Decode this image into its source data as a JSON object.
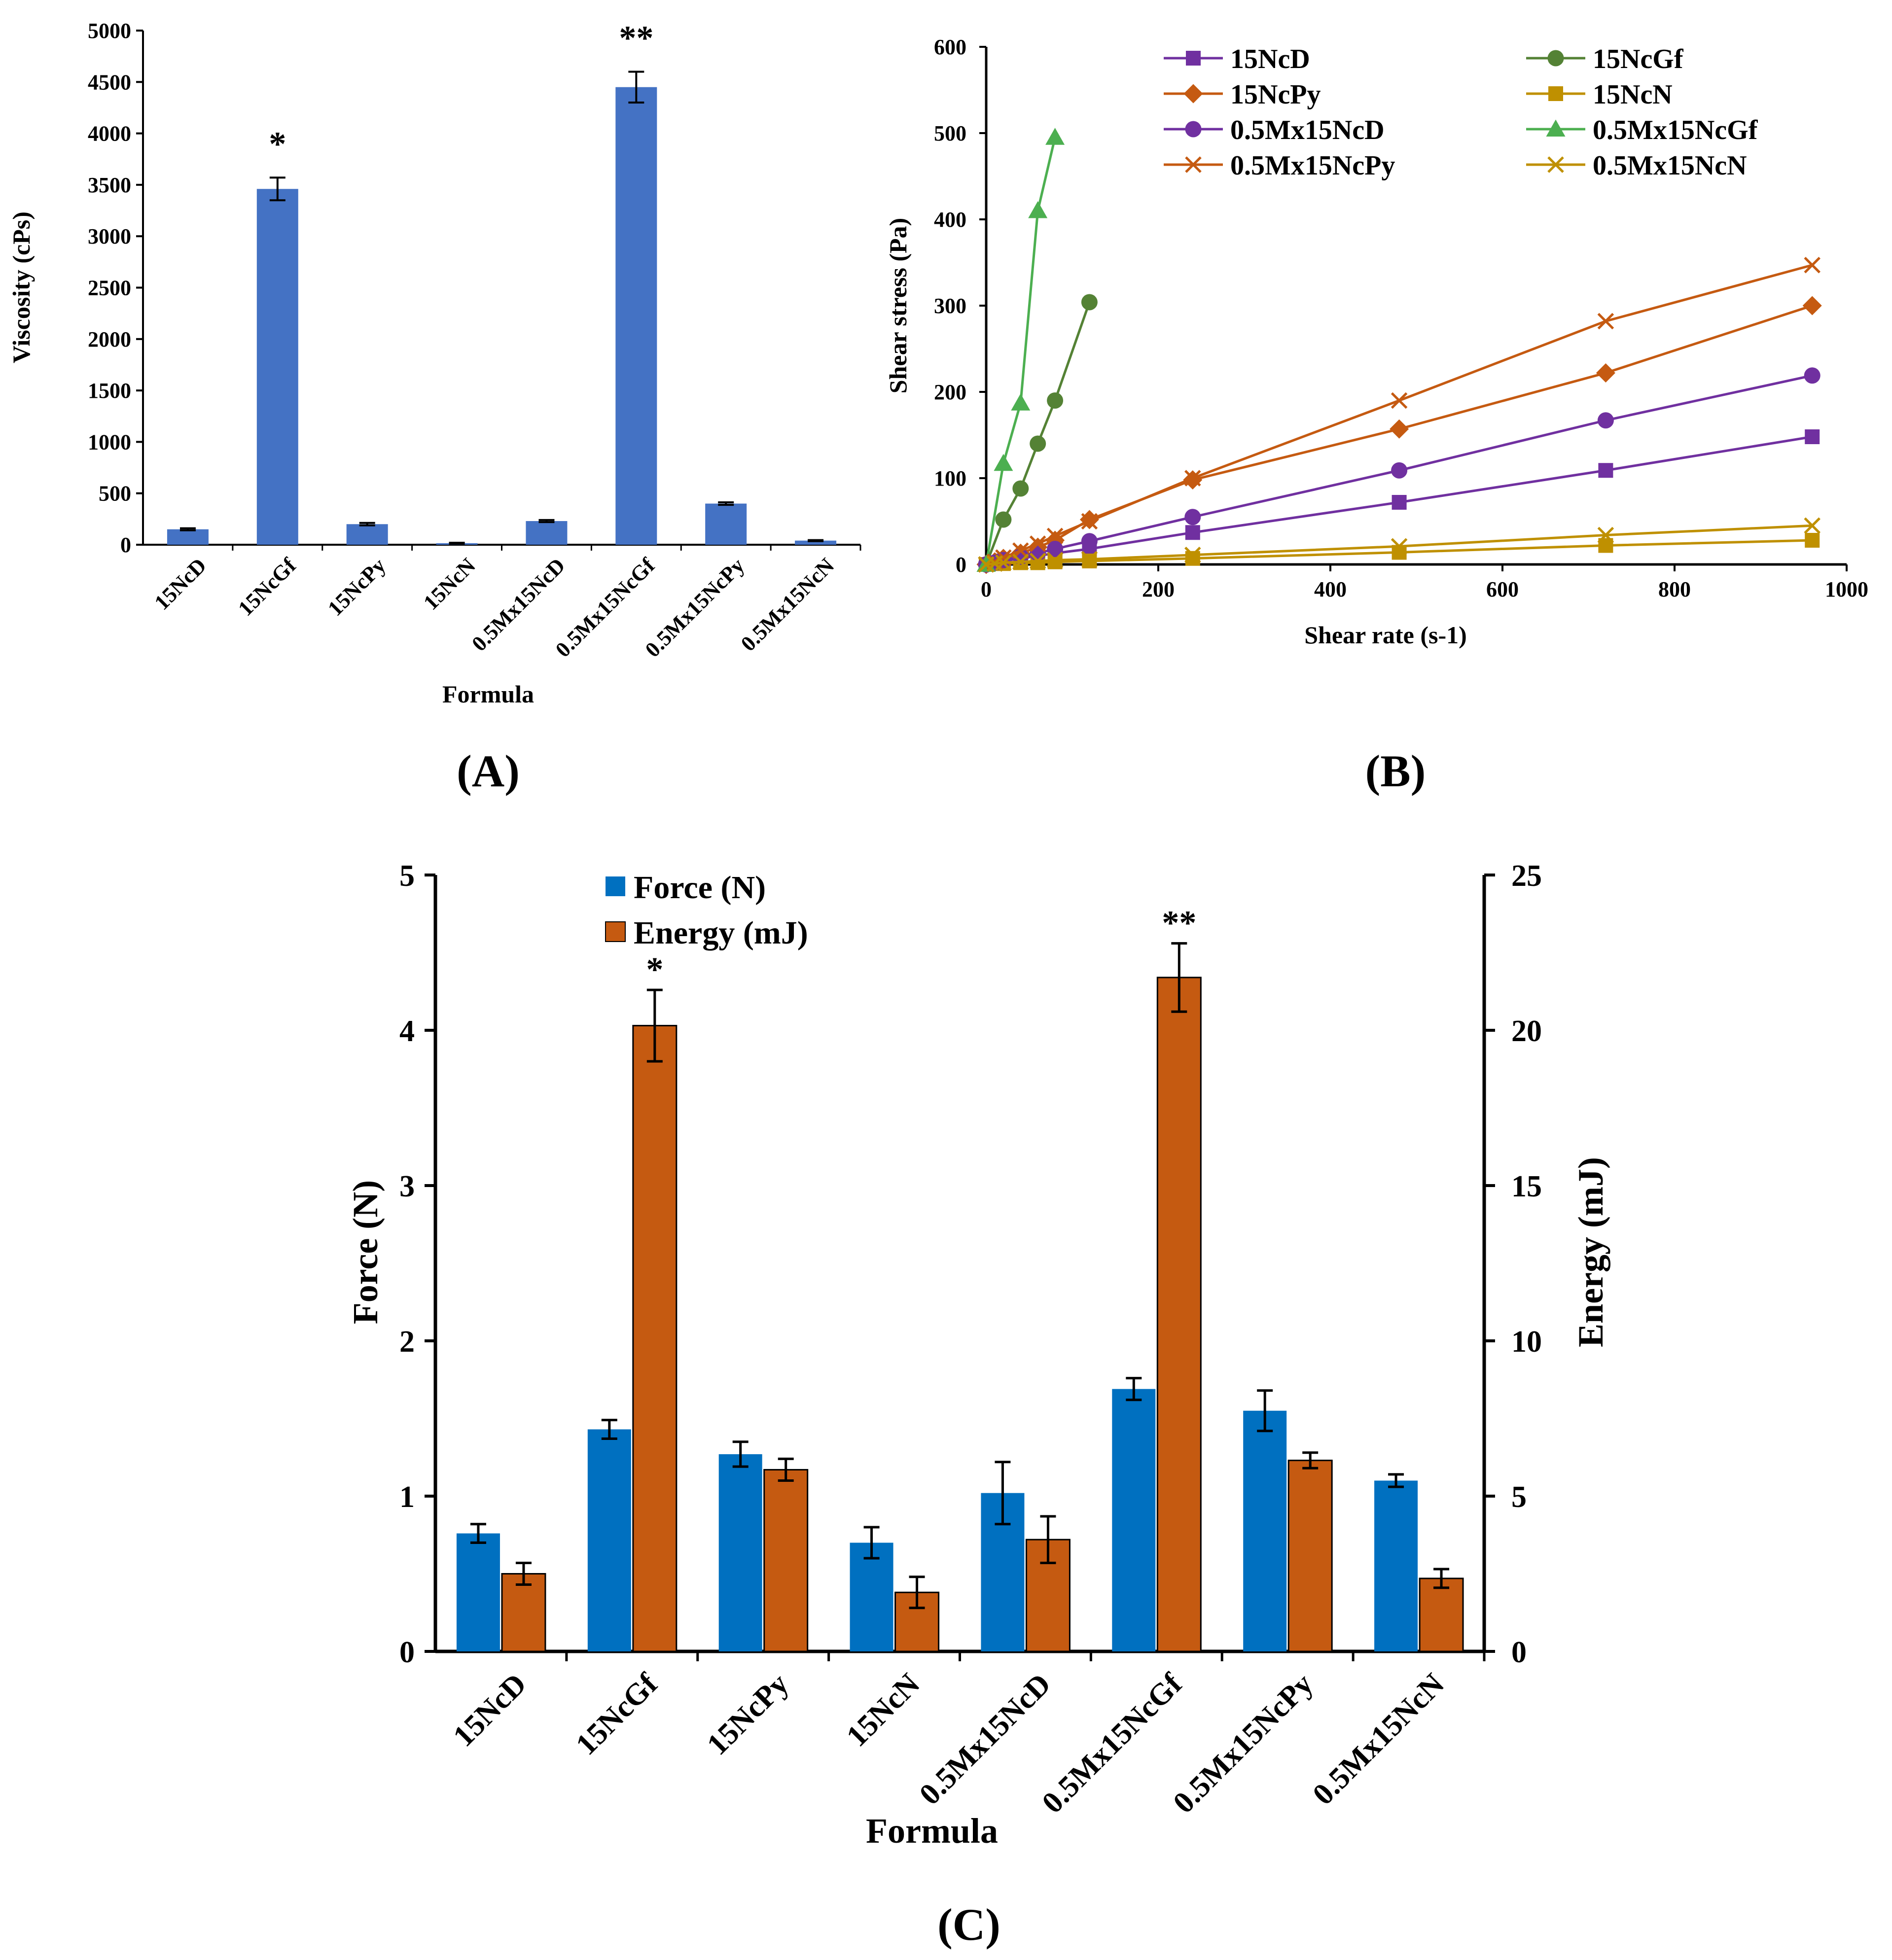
{
  "chart_data": [
    {
      "panel": "(A)",
      "type": "bar",
      "title": "",
      "xlabel": "Formula",
      "ylabel": "Viscosity (cPs)",
      "ylim": [
        0,
        5000
      ],
      "yticks": [
        0,
        500,
        1000,
        1500,
        2000,
        2500,
        3000,
        3500,
        4000,
        4500,
        5000
      ],
      "categories": [
        "15NcD",
        "15NcGf",
        "15NcPy",
        "15NcN",
        "0.5Mx15NcD",
        "0.5Mx15NcGf",
        "0.5Mx15NcPy",
        "0.5Mx15NcN"
      ],
      "values": [
        150,
        3460,
        200,
        15,
        230,
        4450,
        400,
        40
      ],
      "errors": [
        10,
        110,
        12,
        4,
        10,
        150,
        12,
        5
      ],
      "annotations": [
        "",
        "*",
        "",
        "",
        "",
        "**",
        "",
        ""
      ],
      "color": "#4472C4"
    },
    {
      "panel": "(B)",
      "type": "line",
      "title": "",
      "xlabel": "Shear rate (s-1)",
      "ylabel": "Shear stress (Pa)",
      "xlim": [
        0,
        1000
      ],
      "ylim": [
        0,
        600
      ],
      "xticks": [
        0,
        200,
        400,
        600,
        800,
        1000
      ],
      "yticks": [
        0,
        100,
        200,
        300,
        400,
        500,
        600
      ],
      "series": [
        {
          "name": "15NcD",
          "color": "#7030A0",
          "marker": "square",
          "x": [
            0,
            10,
            20,
            40,
            60,
            80,
            120,
            240,
            480,
            720,
            960
          ],
          "y": [
            0,
            2,
            4,
            7,
            10,
            13,
            18,
            37,
            72,
            109,
            148
          ]
        },
        {
          "name": "15NcGf",
          "color": "#548235",
          "marker": "circle",
          "x": [
            0,
            20,
            40,
            60,
            80,
            120
          ],
          "y": [
            0,
            52,
            88,
            140,
            190,
            304
          ]
        },
        {
          "name": "15NcPy",
          "color": "#C55A11",
          "marker": "diamond",
          "x": [
            0,
            10,
            20,
            40,
            60,
            80,
            120,
            240,
            480,
            720,
            960
          ],
          "y": [
            0,
            3,
            7,
            13,
            20,
            28,
            52,
            98,
            157,
            222,
            300
          ]
        },
        {
          "name": "15NcN",
          "color": "#BF9000",
          "marker": "square",
          "x": [
            0,
            10,
            20,
            40,
            60,
            80,
            120,
            240,
            480,
            720,
            960
          ],
          "y": [
            0,
            1,
            1,
            2,
            2,
            3,
            4,
            7,
            14,
            22,
            28
          ]
        },
        {
          "name": "0.5Mx15NcD",
          "color": "#7030A0",
          "marker": "circle",
          "x": [
            0,
            10,
            20,
            40,
            60,
            80,
            120,
            240,
            480,
            720,
            960
          ],
          "y": [
            0,
            2,
            5,
            9,
            13,
            18,
            27,
            55,
            109,
            167,
            219
          ]
        },
        {
          "name": "0.5Mx15NcGf",
          "color": "#4CAF50",
          "marker": "triangle",
          "x": [
            0,
            20,
            40,
            60,
            80
          ],
          "y": [
            0,
            117,
            187,
            410,
            495
          ]
        },
        {
          "name": "0.5Mx15NcPy",
          "color": "#C55A11",
          "marker": "x",
          "x": [
            0,
            10,
            20,
            40,
            60,
            80,
            120,
            240,
            480,
            720,
            960
          ],
          "y": [
            0,
            3,
            8,
            16,
            24,
            33,
            50,
            100,
            190,
            282,
            347
          ]
        },
        {
          "name": "0.5Mx15NcN",
          "color": "#BF9000",
          "marker": "x",
          "x": [
            0,
            10,
            20,
            40,
            60,
            80,
            120,
            240,
            480,
            720,
            960
          ],
          "y": [
            0,
            1,
            2,
            3,
            4,
            5,
            6,
            11,
            21,
            34,
            45
          ]
        }
      ],
      "legend_position": "top"
    },
    {
      "panel": "(C)",
      "type": "bar",
      "title": "",
      "xlabel": "Formula",
      "ylabel": "Force (N)",
      "ylabel_right": "Energy (mJ)",
      "ylim": [
        0,
        5
      ],
      "ylim_right": [
        0,
        25
      ],
      "yticks": [
        0,
        1,
        2,
        3,
        4,
        5
      ],
      "yticks_right": [
        0,
        5,
        10,
        15,
        20,
        25
      ],
      "categories": [
        "15NcD",
        "15NcGf",
        "15NcPy",
        "15NcN",
        "0.5Mx15NcD",
        "0.5Mx15NcGf",
        "0.5Mx15NcPy",
        "0.5Mx15NcN"
      ],
      "series": [
        {
          "name": "Force (N)",
          "axis": "left",
          "color": "#0070C0",
          "values": [
            0.76,
            1.43,
            1.27,
            0.7,
            1.02,
            1.69,
            1.55,
            1.1
          ],
          "errors": [
            0.06,
            0.06,
            0.08,
            0.1,
            0.2,
            0.07,
            0.13,
            0.04
          ]
        },
        {
          "name": "Energy (mJ)",
          "axis": "right",
          "color": "#C55A11",
          "values": [
            2.5,
            20.15,
            5.85,
            1.9,
            3.6,
            21.7,
            6.15,
            2.35
          ],
          "errors": [
            0.35,
            1.15,
            0.35,
            0.5,
            0.75,
            1.1,
            0.25,
            0.3
          ]
        }
      ],
      "annotations": [
        "",
        "*",
        "",
        "",
        "",
        "**",
        "",
        ""
      ],
      "legend_position": "top-left"
    }
  ]
}
